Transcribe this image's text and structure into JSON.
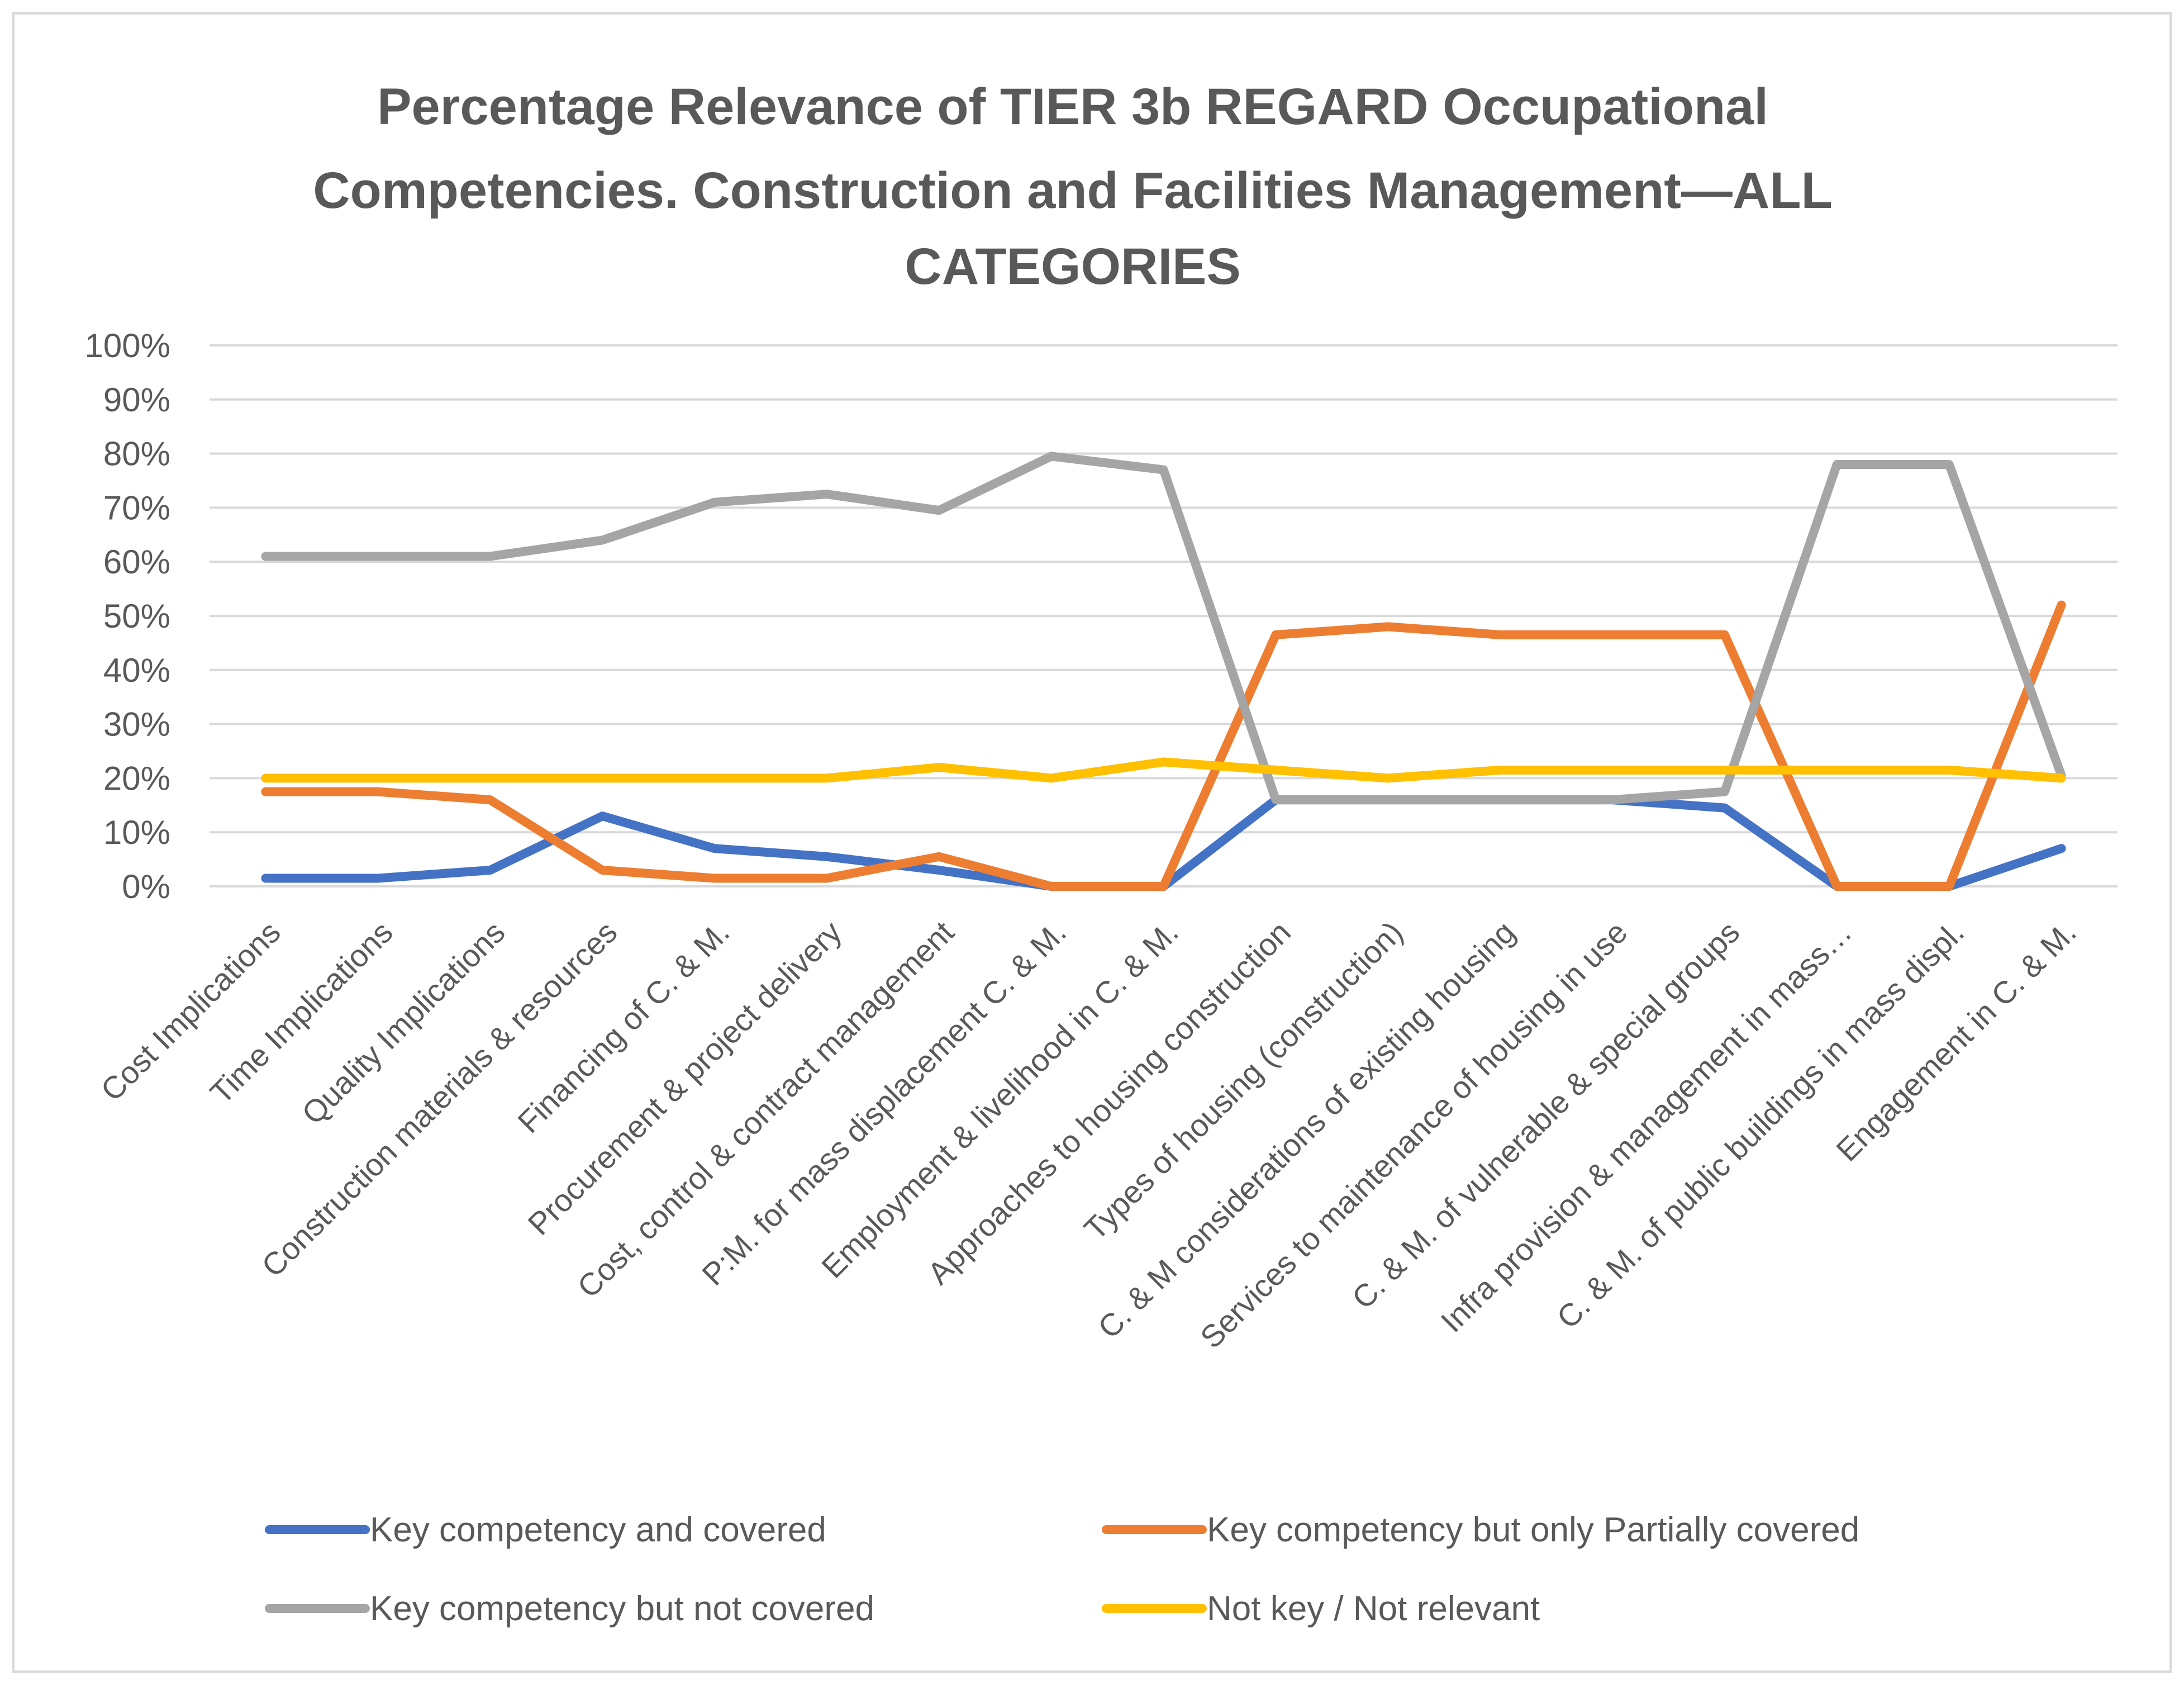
{
  "chart_data": {
    "type": "line",
    "title_lines": [
      "Percentage Relevance of TIER 3b REGARD Occupational",
      "Competencies. Construction and Facilities Management—ALL",
      "CATEGORIES"
    ],
    "ylim": [
      0,
      100
    ],
    "yticks": [
      "0%",
      "10%",
      "20%",
      "30%",
      "40%",
      "50%",
      "60%",
      "70%",
      "80%",
      "90%",
      "100%"
    ],
    "grid": true,
    "legend_position": "bottom",
    "categories": [
      "Cost Implications",
      "Time Implications",
      "Quality Implications",
      "Construction materials & resources",
      "Financing of C. & M.",
      "Procurement & project delivery",
      "Cost, control & contract management",
      "P:M. for mass displacement C. & M.",
      "Employment & livelihood in C. & M.",
      "Approaches to housing construction",
      "Types of housing  (construction)",
      "C. & M considerations of existing housing",
      "Services to maintenance of housing in use",
      "C. & M. of vulnerable & special groups",
      "Infra provision & management in mass…",
      "C. & M. of public buildings in mass displ.",
      "Engagement in C. & M."
    ],
    "series": [
      {
        "name": "Key competency and covered",
        "color": "#4472c4",
        "values": [
          1.5,
          1.5,
          3,
          13,
          7,
          5.5,
          3,
          0,
          0,
          16,
          16,
          16,
          16,
          14.5,
          0,
          0,
          7
        ]
      },
      {
        "name": "Key competency but only Partially covered",
        "color": "#ed7d31",
        "values": [
          17.5,
          17.5,
          16,
          3,
          1.5,
          1.5,
          5.5,
          0,
          0,
          46.5,
          48,
          46.5,
          46.5,
          46.5,
          0,
          0,
          52
        ]
      },
      {
        "name": "Key competency but not covered",
        "color": "#a5a5a5",
        "values": [
          61,
          61,
          61,
          64,
          71,
          72.5,
          69.5,
          79.5,
          77,
          16,
          16,
          16,
          16,
          17.5,
          78,
          78,
          20.5
        ]
      },
      {
        "name": "Not key / Not relevant",
        "color": "#ffc000",
        "values": [
          20,
          20,
          20,
          20,
          20,
          20,
          22,
          20,
          23,
          21.5,
          20,
          21.5,
          21.5,
          21.5,
          21.5,
          21.5,
          20
        ]
      }
    ]
  }
}
